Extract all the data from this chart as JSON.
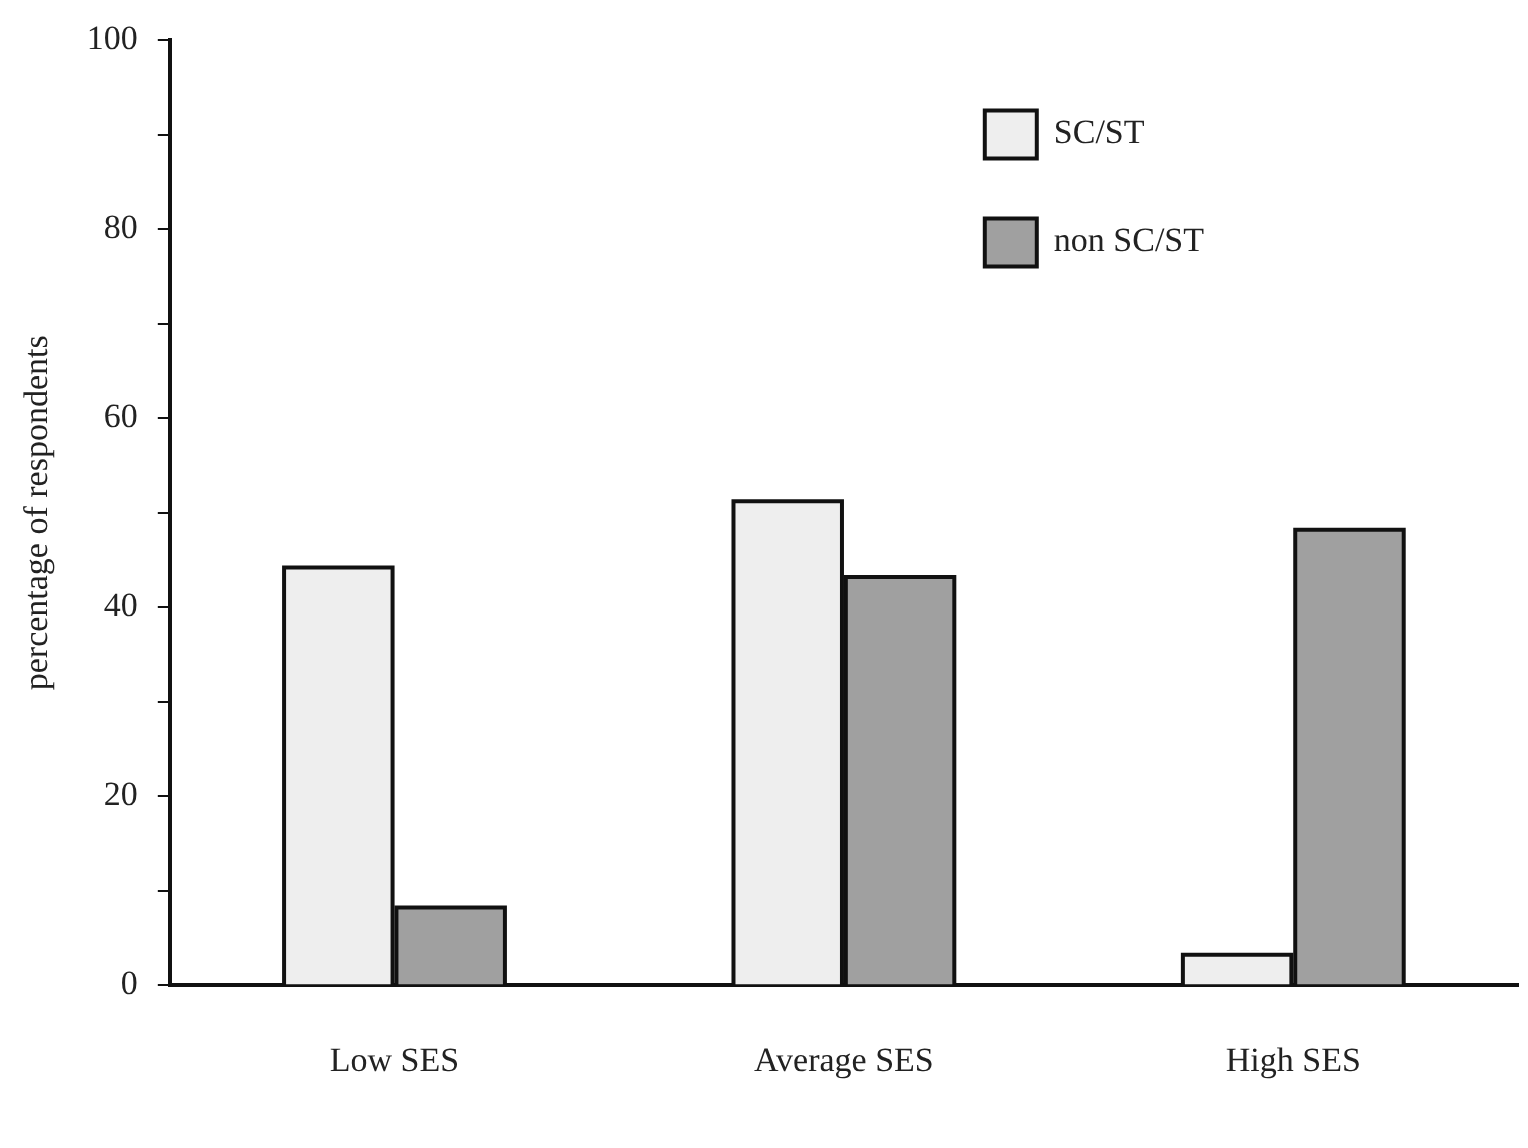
{
  "chart_data": {
    "type": "bar",
    "ylabel": "percentage of respondents",
    "categories": [
      "Low SES",
      "Average SES",
      "High SES"
    ],
    "series": [
      {
        "name": "SC/ST",
        "color": "#eeeeee",
        "values": [
          44,
          51,
          3
        ]
      },
      {
        "name": "non SC/ST",
        "color": "#a0a0a0",
        "values": [
          8,
          43,
          48
        ]
      }
    ],
    "ylim": [
      0,
      100
    ],
    "yticks": [
      0,
      {
        "value": 10,
        "label": null
      },
      20,
      {
        "value": 30,
        "label": null
      },
      40,
      {
        "value": 50,
        "label": null
      },
      60,
      {
        "value": 70,
        "label": null
      },
      80,
      {
        "value": 90,
        "label": null
      },
      100
    ],
    "grid": false,
    "legend": "top right"
  }
}
